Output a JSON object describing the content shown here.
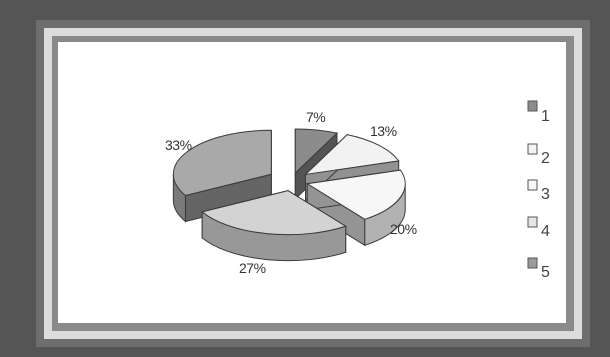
{
  "chart_data": {
    "type": "pie",
    "style": "3d-exploded",
    "categories": [
      "1",
      "2",
      "3",
      "4",
      "5"
    ],
    "values": [
      7,
      13,
      20,
      27,
      33
    ],
    "labels": [
      "7%",
      "13%",
      "20%",
      "27%",
      "33%"
    ],
    "colors": [
      "#8c8c8c",
      "#f2f2f2",
      "#f7f7f7",
      "#d3d3d3",
      "#a9a9a9"
    ],
    "legend": {
      "placement": "right",
      "entries": [
        "1",
        "2",
        "3",
        "4",
        "5"
      ]
    }
  }
}
